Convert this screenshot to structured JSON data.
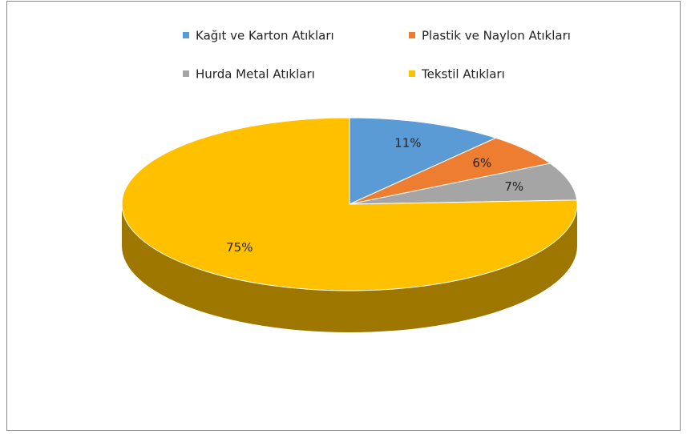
{
  "chart_data": {
    "type": "pie",
    "categories": [
      "Kağıt ve Karton Atıkları",
      "Plastik ve Naylon Atıkları",
      "Hurda Metal Atıkları",
      "Tekstil  Atıkları"
    ],
    "values": [
      11,
      6,
      7,
      75
    ],
    "value_labels": [
      "11%",
      "6%",
      "7%",
      "75%"
    ],
    "colors": [
      "#5b9bd5",
      "#ed7d31",
      "#a5a5a5",
      "#ffc000"
    ],
    "legend": "top"
  }
}
